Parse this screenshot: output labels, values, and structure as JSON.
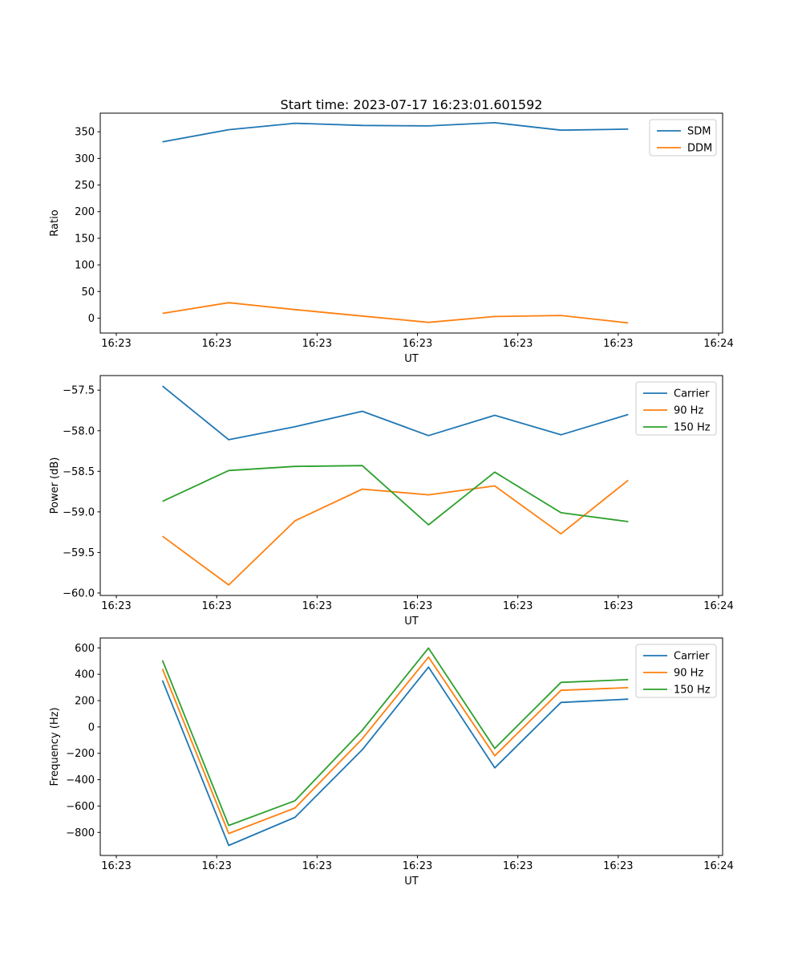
{
  "figure_title": "Start time: 2023-07-17 16:23:01.601592",
  "colors": {
    "blue": "#1f77b4",
    "orange": "#ff7f0e",
    "green": "#2ca02c"
  },
  "chart_data": [
    {
      "type": "line",
      "title": "Start time: 2023-07-17 16:23:01.601592",
      "xlabel": "UT",
      "ylabel": "Ratio",
      "xlim_seconds": [
        -1.6,
        60.4
      ],
      "ylim": [
        -28,
        385
      ],
      "x_tick_seconds": [
        0,
        10,
        20,
        30,
        40,
        50,
        60
      ],
      "x_tick_labels": [
        "16:23",
        "16:23",
        "16:23",
        "16:23",
        "16:23",
        "16:23",
        "16:24"
      ],
      "y_tick_values": [
        0,
        50,
        100,
        150,
        200,
        250,
        300,
        350
      ],
      "y_tick_labels": [
        "0",
        "50",
        "100",
        "150",
        "200",
        "250",
        "300",
        "350"
      ],
      "x_seconds": [
        4.6,
        11.2,
        17.8,
        24.5,
        31.1,
        37.7,
        44.3,
        51.0
      ],
      "legend_position": "upper right",
      "grid": false,
      "series": [
        {
          "name": "SDM",
          "color": "#1f77b4",
          "values": [
            331,
            354,
            366,
            362,
            361,
            367,
            353,
            355
          ]
        },
        {
          "name": "DDM",
          "color": "#ff7f0e",
          "values": [
            9,
            29,
            16,
            4,
            -8,
            3,
            5,
            -9
          ]
        }
      ]
    },
    {
      "type": "line",
      "title": "",
      "xlabel": "UT",
      "ylabel": "Power (dB)",
      "xlim_seconds": [
        -1.6,
        60.4
      ],
      "ylim": [
        -60.03,
        -57.32
      ],
      "x_tick_seconds": [
        0,
        10,
        20,
        30,
        40,
        50,
        60
      ],
      "x_tick_labels": [
        "16:23",
        "16:23",
        "16:23",
        "16:23",
        "16:23",
        "16:23",
        "16:24"
      ],
      "y_tick_values": [
        -60.0,
        -59.5,
        -59.0,
        -58.5,
        -58.0,
        -57.5
      ],
      "y_tick_labels": [
        "−60.0",
        "−59.5",
        "−59.0",
        "−58.5",
        "−58.0",
        "−57.5"
      ],
      "x_seconds": [
        4.6,
        11.2,
        17.8,
        24.5,
        31.1,
        37.7,
        44.3,
        51.0
      ],
      "legend_position": "upper right",
      "grid": false,
      "series": [
        {
          "name": "Carrier",
          "color": "#1f77b4",
          "values": [
            -57.45,
            -58.11,
            -57.95,
            -57.76,
            -58.06,
            -57.81,
            -58.05,
            -57.8
          ]
        },
        {
          "name": "90 Hz",
          "color": "#ff7f0e",
          "values": [
            -59.3,
            -59.9,
            -59.11,
            -58.72,
            -58.79,
            -58.68,
            -59.27,
            -58.61
          ]
        },
        {
          "name": "150 Hz",
          "color": "#2ca02c",
          "values": [
            -58.87,
            -58.49,
            -58.44,
            -58.43,
            -59.16,
            -58.51,
            -59.01,
            -59.12
          ]
        }
      ]
    },
    {
      "type": "line",
      "title": "",
      "xlabel": "UT",
      "ylabel": "Frequency (Hz)",
      "xlim_seconds": [
        -1.6,
        60.4
      ],
      "ylim": [
        -975,
        675
      ],
      "x_tick_seconds": [
        0,
        10,
        20,
        30,
        40,
        50,
        60
      ],
      "x_tick_labels": [
        "16:23",
        "16:23",
        "16:23",
        "16:23",
        "16:23",
        "16:23",
        "16:24"
      ],
      "y_tick_values": [
        -800,
        -600,
        -400,
        -200,
        0,
        200,
        400,
        600
      ],
      "y_tick_labels": [
        "−800",
        "−600",
        "−400",
        "−200",
        "0",
        "200",
        "400",
        "600"
      ],
      "x_seconds": [
        4.6,
        11.2,
        17.8,
        24.5,
        31.1,
        37.7,
        44.3,
        51.0
      ],
      "legend_position": "upper right",
      "grid": false,
      "series": [
        {
          "name": "Carrier",
          "color": "#1f77b4",
          "values": [
            353,
            -899,
            -686,
            -173,
            454,
            -310,
            186,
            211
          ]
        },
        {
          "name": "90 Hz",
          "color": "#ff7f0e",
          "values": [
            440,
            -808,
            -615,
            -90,
            530,
            -219,
            278,
            298
          ]
        },
        {
          "name": "150 Hz",
          "color": "#2ca02c",
          "values": [
            505,
            -747,
            -560,
            -25,
            598,
            -163,
            338,
            359
          ]
        }
      ]
    }
  ]
}
